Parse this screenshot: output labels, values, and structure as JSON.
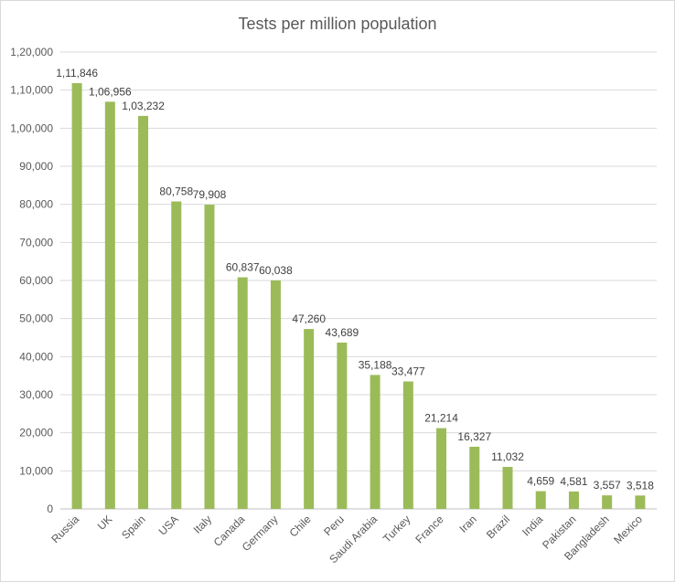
{
  "chart_data": {
    "type": "bar",
    "title": "Tests per million population",
    "xlabel": "",
    "ylabel": "",
    "ylim": [
      0,
      120000
    ],
    "ytick_step": 10000,
    "ytick_labels": [
      "0",
      "10,000",
      "20,000",
      "30,000",
      "40,000",
      "50,000",
      "60,000",
      "70,000",
      "80,000",
      "90,000",
      "1,00,000",
      "1,10,000",
      "1,20,000"
    ],
    "grid": true,
    "bar_color": "#9bbb59",
    "categories": [
      "Russia",
      "UK",
      "Spain",
      "USA",
      "Italy",
      "Canada",
      "Germany",
      "Chile",
      "Peru",
      "Saudi Arabia",
      "Turkey",
      "France",
      "Iran",
      "Brazil",
      "India",
      "Pakistan",
      "Bangladesh",
      "Mexico"
    ],
    "values": [
      111846,
      106956,
      103232,
      80758,
      79908,
      60837,
      60038,
      47260,
      43689,
      35188,
      33477,
      21214,
      16327,
      11032,
      4659,
      4581,
      3557,
      3518
    ],
    "value_labels": [
      "1,11,846",
      "1,06,956",
      "1,03,232",
      "80,758",
      "79,908",
      "60,837",
      "60,038",
      "47,260",
      "43,689",
      "35,188",
      "33,477",
      "21,214",
      "16,327",
      "11,032",
      "4,659",
      "4,581",
      "3,557",
      "3,518"
    ]
  }
}
